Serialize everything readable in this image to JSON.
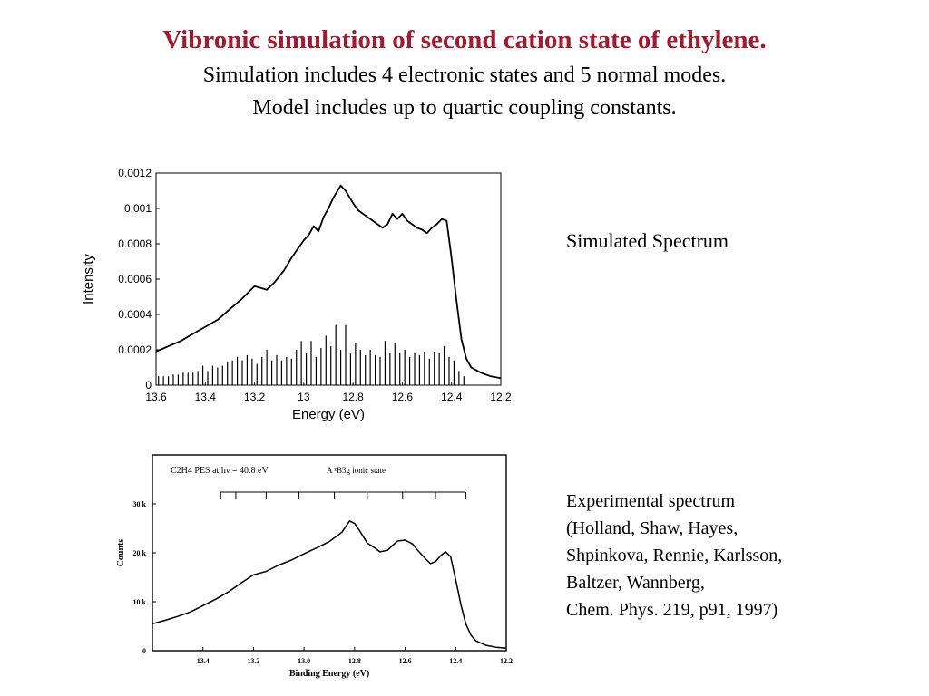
{
  "slide": {
    "title": "Vibronic simulation of second cation state of ethylene.",
    "subtitle_lines": [
      "Simulation includes 4 electronic states and 5 normal modes.",
      "Model includes up to quartic coupling constants."
    ],
    "colors": {
      "title": "#a3192d",
      "text": "#000000",
      "plot": "#000000"
    }
  },
  "labels": {
    "simulated": "Simulated Spectrum",
    "experimental_lines": [
      "Experimental spectrum",
      "(Holland, Shaw, Hayes,",
      "Shpinkova, Rennie, Karlsson,",
      "Baltzer, Wannberg,",
      "Chem. Phys. 219, p91, 1997)"
    ]
  },
  "chart_data": [
    {
      "type": "line",
      "title": "",
      "xlabel": "Energy (eV)",
      "ylabel": "Intensity",
      "xlim": [
        13.6,
        12.2
      ],
      "ylim": [
        0,
        0.0012
      ],
      "x_reversed": true,
      "grid": false,
      "xticks": [
        "13.6",
        "13.4",
        "13.2",
        "13",
        "12.8",
        "12.6",
        "12.4",
        "12.2"
      ],
      "yticks": [
        "0",
        "0.0002",
        "0.0004",
        "0.0006",
        "0.0008",
        "0.001",
        "0.0012"
      ],
      "series": [
        {
          "kind": "line",
          "points": [
            [
              13.6,
              0.00019
            ],
            [
              13.55,
              0.00022
            ],
            [
              13.5,
              0.00025
            ],
            [
              13.45,
              0.00029
            ],
            [
              13.4,
              0.00033
            ],
            [
              13.35,
              0.00037
            ],
            [
              13.3,
              0.00043
            ],
            [
              13.25,
              0.00049
            ],
            [
              13.2,
              0.00056
            ],
            [
              13.15,
              0.00054
            ],
            [
              13.12,
              0.00058
            ],
            [
              13.08,
              0.00065
            ],
            [
              13.05,
              0.00072
            ],
            [
              13.02,
              0.00078
            ],
            [
              13.0,
              0.00082
            ],
            [
              12.98,
              0.00085
            ],
            [
              12.96,
              0.0009
            ],
            [
              12.94,
              0.00087
            ],
            [
              12.92,
              0.00095
            ],
            [
              12.9,
              0.001
            ],
            [
              12.88,
              0.00106
            ],
            [
              12.85,
              0.00113
            ],
            [
              12.83,
              0.0011
            ],
            [
              12.8,
              0.00103
            ],
            [
              12.78,
              0.00099
            ],
            [
              12.76,
              0.00097
            ],
            [
              12.74,
              0.00095
            ],
            [
              12.72,
              0.00093
            ],
            [
              12.7,
              0.00091
            ],
            [
              12.68,
              0.00089
            ],
            [
              12.66,
              0.00091
            ],
            [
              12.64,
              0.00097
            ],
            [
              12.62,
              0.00094
            ],
            [
              12.6,
              0.00097
            ],
            [
              12.58,
              0.00093
            ],
            [
              12.56,
              0.00091
            ],
            [
              12.54,
              0.00089
            ],
            [
              12.52,
              0.00088
            ],
            [
              12.5,
              0.00086
            ],
            [
              12.48,
              0.00089
            ],
            [
              12.46,
              0.00091
            ],
            [
              12.44,
              0.00094
            ],
            [
              12.42,
              0.00093
            ],
            [
              12.4,
              0.00072
            ],
            [
              12.38,
              0.00048
            ],
            [
              12.36,
              0.00026
            ],
            [
              12.34,
              0.00015
            ],
            [
              12.32,
              0.0001
            ],
            [
              12.28,
              7e-05
            ],
            [
              12.24,
              5e-05
            ],
            [
              12.2,
              4e-05
            ]
          ]
        },
        {
          "kind": "stick",
          "points": [
            [
              13.59,
              5e-05
            ],
            [
              13.57,
              5e-05
            ],
            [
              13.55,
              5e-05
            ],
            [
              13.53,
              6e-05
            ],
            [
              13.51,
              6e-05
            ],
            [
              13.49,
              7e-05
            ],
            [
              13.47,
              7e-05
            ],
            [
              13.45,
              7e-05
            ],
            [
              13.43,
              8e-05
            ],
            [
              13.41,
              0.00011
            ],
            [
              13.39,
              8e-05
            ],
            [
              13.37,
              0.00011
            ],
            [
              13.35,
              0.0001
            ],
            [
              13.33,
              0.00011
            ],
            [
              13.31,
              0.00013
            ],
            [
              13.29,
              0.00014
            ],
            [
              13.27,
              0.00016
            ],
            [
              13.25,
              0.00014
            ],
            [
              13.23,
              0.00017
            ],
            [
              13.21,
              0.00015
            ],
            [
              13.19,
              0.00012
            ],
            [
              13.17,
              0.00016
            ],
            [
              13.15,
              0.0002
            ],
            [
              13.13,
              0.00014
            ],
            [
              13.11,
              0.00017
            ],
            [
              13.09,
              0.00014
            ],
            [
              13.07,
              0.00016
            ],
            [
              13.05,
              0.00015
            ],
            [
              13.03,
              0.0002
            ],
            [
              13.01,
              0.00025
            ],
            [
              12.99,
              0.00018
            ],
            [
              12.97,
              0.00025
            ],
            [
              12.95,
              0.00016
            ],
            [
              12.93,
              0.00021
            ],
            [
              12.91,
              0.00028
            ],
            [
              12.89,
              0.00022
            ],
            [
              12.87,
              0.00034
            ],
            [
              12.85,
              0.0002
            ],
            [
              12.83,
              0.00034
            ],
            [
              12.81,
              0.00018
            ],
            [
              12.79,
              0.00024
            ],
            [
              12.77,
              0.0002
            ],
            [
              12.75,
              0.00017
            ],
            [
              12.73,
              0.0002
            ],
            [
              12.71,
              0.00017
            ],
            [
              12.69,
              0.00016
            ],
            [
              12.67,
              0.00025
            ],
            [
              12.65,
              0.00018
            ],
            [
              12.63,
              0.00024
            ],
            [
              12.61,
              0.00018
            ],
            [
              12.59,
              0.0002
            ],
            [
              12.57,
              0.00016
            ],
            [
              12.55,
              0.00018
            ],
            [
              12.53,
              0.00017
            ],
            [
              12.51,
              0.00019
            ],
            [
              12.49,
              0.00015
            ],
            [
              12.47,
              0.00019
            ],
            [
              12.45,
              0.00018
            ],
            [
              12.43,
              0.00022
            ],
            [
              12.41,
              0.00016
            ],
            [
              12.39,
              0.00014
            ],
            [
              12.37,
              8e-05
            ],
            [
              12.35,
              5e-05
            ]
          ]
        }
      ]
    },
    {
      "type": "line",
      "title": "",
      "header_text": "C2H4  PES at hν = 40.8 eV",
      "state_label": "A ²B3g ionic state",
      "xlabel": "Binding Energy (eV)",
      "ylabel": "Counts",
      "xlim": [
        13.6,
        12.2
      ],
      "ylim": [
        0,
        40000
      ],
      "x_reversed": true,
      "grid": false,
      "xticks": [
        "13.4",
        "13.2",
        "13.0",
        "12.8",
        "12.6",
        "12.4",
        "12.2"
      ],
      "yticks": [
        "0",
        "10 k",
        "20 k",
        "30 k"
      ],
      "progression_comb": [
        13.33,
        13.27,
        13.15,
        13.02,
        12.88,
        12.75,
        12.61,
        12.48,
        12.36
      ],
      "series": [
        {
          "kind": "line",
          "points": [
            [
              13.6,
              5500
            ],
            [
              13.55,
              6200
            ],
            [
              13.5,
              7000
            ],
            [
              13.45,
              7900
            ],
            [
              13.4,
              9200
            ],
            [
              13.35,
              10500
            ],
            [
              13.3,
              12000
            ],
            [
              13.25,
              13800
            ],
            [
              13.2,
              15500
            ],
            [
              13.15,
              16200
            ],
            [
              13.1,
              17500
            ],
            [
              13.05,
              18500
            ],
            [
              13.0,
              19800
            ],
            [
              12.95,
              21000
            ],
            [
              12.9,
              22300
            ],
            [
              12.85,
              24200
            ],
            [
              12.82,
              26500
            ],
            [
              12.8,
              26000
            ],
            [
              12.78,
              24500
            ],
            [
              12.75,
              22000
            ],
            [
              12.72,
              21000
            ],
            [
              12.7,
              20200
            ],
            [
              12.67,
              20500
            ],
            [
              12.65,
              21500
            ],
            [
              12.63,
              22400
            ],
            [
              12.6,
              22600
            ],
            [
              12.57,
              21800
            ],
            [
              12.55,
              20500
            ],
            [
              12.52,
              18800
            ],
            [
              12.5,
              17800
            ],
            [
              12.48,
              18200
            ],
            [
              12.46,
              19400
            ],
            [
              12.44,
              20200
            ],
            [
              12.42,
              19200
            ],
            [
              12.4,
              14500
            ],
            [
              12.38,
              9500
            ],
            [
              12.36,
              5500
            ],
            [
              12.34,
              3200
            ],
            [
              12.32,
              2000
            ],
            [
              12.28,
              1100
            ],
            [
              12.24,
              700
            ],
            [
              12.2,
              500
            ]
          ]
        }
      ]
    }
  ]
}
